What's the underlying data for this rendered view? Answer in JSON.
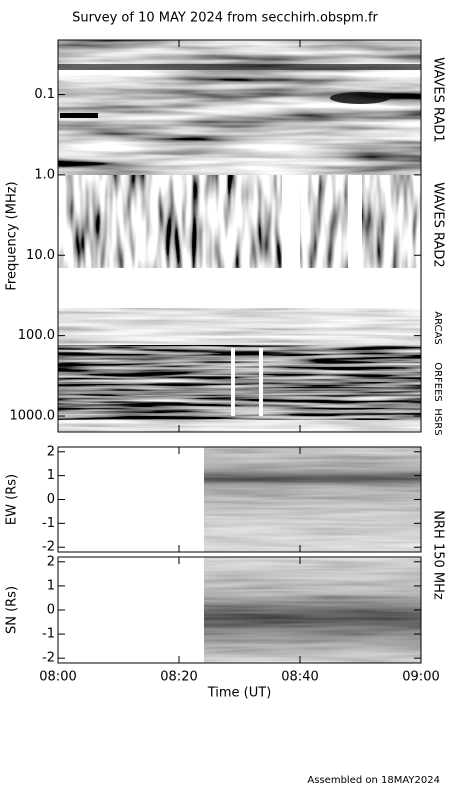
{
  "footer": "Assembled on 18MAY2024",
  "chart_data": [
    {
      "type": "spectrogram",
      "title": "Survey of 10 MAY 2024 from secchirh.obspm.fr",
      "ylabel": "Frequency (MHz)",
      "log_y": true,
      "y_inverted": true,
      "ylim": [
        0.021,
        1580
      ],
      "yticks": [
        {
          "value": 0.1,
          "label": "0.1"
        },
        {
          "value": 1,
          "label": "1.0"
        },
        {
          "value": 10,
          "label": "10.0"
        },
        {
          "value": 100,
          "label": "100.0"
        },
        {
          "value": 1000,
          "label": "1000.0"
        }
      ],
      "instruments": [
        "WAVES RAD1",
        "WAVES RAD2",
        "ARCAS",
        "ORFEES",
        "HSRS"
      ]
    },
    {
      "type": "spectrogram",
      "ylabel": "EW (Rs)",
      "ylim": [
        -2.2,
        2.2
      ],
      "yticks": [
        -2,
        -1,
        0,
        1,
        2
      ],
      "instrument": "NRH 150 MHz"
    },
    {
      "type": "spectrogram",
      "ylabel": "SN (Rs)",
      "ylim": [
        -2.2,
        2.2
      ],
      "yticks": [
        -2,
        -1,
        0,
        1,
        2
      ],
      "xlabel": "Time (UT)",
      "xlim": [
        "08:00",
        "09:00"
      ],
      "xticks": [
        "08:00",
        "08:20",
        "08:40",
        "09:00"
      ]
    }
  ]
}
